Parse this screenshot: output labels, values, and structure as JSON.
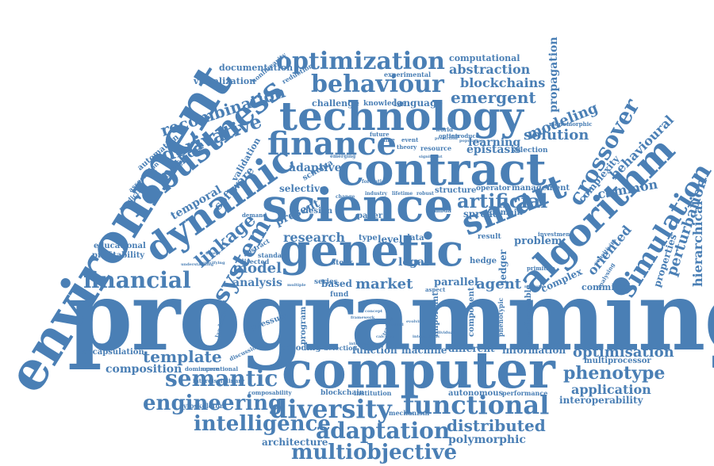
{
  "accent_color": "#4a7fb5",
  "words": {
    "programming": "programming",
    "environment": "environment",
    "computer": "computer",
    "contract": "contract",
    "science": "science",
    "technology": "technology",
    "genetic": "genetic",
    "finance": "finance",
    "dynamic": "dynamic",
    "robustness": "robustness",
    "algorithm": "algorithm",
    "smart": "smart",
    "simulation": "simulation",
    "crossover": "crossover",
    "optimization": "optimization",
    "behaviour": "behaviour",
    "diversity": "diversity",
    "functional": "functional",
    "multiobjective": "multiobjective",
    "adaptation": "adaptation",
    "intelligence": "intelligence",
    "engineering": "engineering",
    "semantic": "semantic",
    "template": "template",
    "composition": "composition",
    "encapsulation": "encapsulation",
    "financial": "financial",
    "linkage": "linkage",
    "system": "system",
    "derivative": "derivative",
    "recombination": "recombination",
    "phenotype": "phenotype",
    "optimisation": "optimisation",
    "application": "application",
    "interoperability": "interoperability",
    "distributed": "distributed",
    "polymorphic": "polymorphic",
    "architecture": "architecture",
    "emergent": "emergent",
    "abstraction": "abstraction",
    "blockchains": "blockchains",
    "modeling": "modeling",
    "solution": "solution",
    "propagation": "propagation",
    "perturbation": "perturbation",
    "hierarchical": "hierarchical",
    "behavioural": "behavioural",
    "artificial": "artificial",
    "research": "research",
    "market": "market",
    "agent": "agent",
    "model": "model",
    "analysis": "analysis",
    "adaptive": "adaptive",
    "selective": "selective",
    "temporal": "temporal",
    "software": "software",
    "validation": "validation",
    "method": "method",
    "automation": "automation",
    "documentation": "documentation",
    "visualization": "visualization",
    "computational": "computational",
    "experimental": "experimental",
    "challenge": "challenge",
    "knowledge": "knowledge",
    "language": "language",
    "learning": "learning",
    "epistasis": "epistasis",
    "selection": "selection",
    "complexity": "complexity",
    "common": "common",
    "oriented": "oriented",
    "complex": "complex",
    "problem": "problem",
    "ledger": "ledger",
    "committee": "committee",
    "properties": "properties",
    "multiprocessor": "multiprocessor",
    "information": "information",
    "different": "different",
    "function": "function",
    "machine": "machine",
    "encoding": "encoding",
    "detection": "detection",
    "parallel": "parallel",
    "based": "based",
    "present": "present",
    "profitability": "profitability",
    "educational": "educational",
    "cytoskeleton": "cytoskeleton",
    "blockchain": "blockchain",
    "institution": "institution",
    "autonomous": "autonomous",
    "performance": "performance",
    "reduction": "reduction",
    "nonlinearity": "nonlinearity",
    "structure": "structure",
    "operator": "operator",
    "management": "management",
    "spread": "spread",
    "domain": "domain",
    "design": "design",
    "paper": "paper",
    "legal": "legal",
    "result": "result",
    "hedge": "hedge",
    "stock": "stock",
    "series": "series",
    "level": "level",
    "type": "type",
    "data": "data",
    "abstract": "abstract",
    "standard": "standard",
    "directed": "directed",
    "pressure": "pressure",
    "program": "program",
    "fund": "fund",
    "monomorphic": "monomorphic",
    "predictive": "predictive",
    "association": "association",
    "schema": "schema",
    "component": "component",
    "important": "important",
    "phenotypic": "phenotypic",
    "enforceable": "enforceable",
    "mechanism": "mechanism",
    "introduce": "introduce",
    "resource": "resource",
    "investment": "investment",
    "primitive": "primitive",
    "aspect": "aspect",
    "future": "future",
    "event": "event",
    "time": "time",
    "theory": "theory",
    "option": "option",
    "world": "world",
    "discussion": "discussion",
    "dominance": "dominance",
    "operational": "operational",
    "interdisciplinary": "interdisciplinary",
    "composability": "composability",
    "landscape": "landscape",
    "sensitivity": "sensitivity",
    "analysing": "analysing",
    "demand": "demand",
    "emerging": "emerging",
    "lambda": "lambda",
    "change": "change",
    "industry": "industry",
    "formation": "formation",
    "robust": "robust",
    "lifetime": "lifetime",
    "significant": "significant",
    "understanding": "understanding",
    "specifying": "specifying",
    "fitness": "fitness",
    "calculus": "calculus",
    "interactions": "interactions",
    "multiple": "multiple",
    "individual": "individual",
    "introducing": "introducing",
    "applied": "applied",
    "population": "population",
    "prediction": "prediction",
    "recursion": "recursion",
    "trading": "trading",
    "evolving": "evolving",
    "concept": "concept",
    "framework": "framework"
  }
}
